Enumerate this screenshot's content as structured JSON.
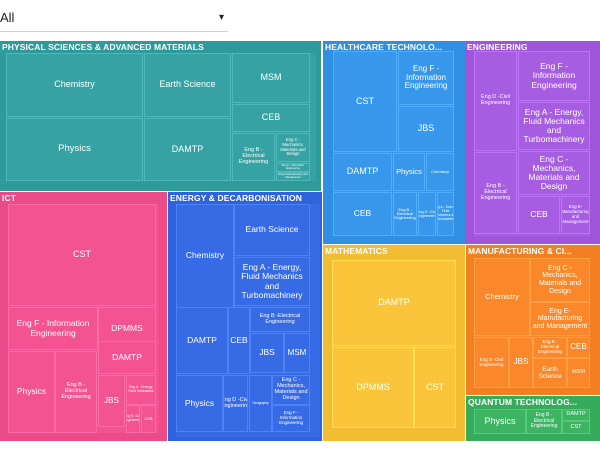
{
  "filter": {
    "value": "All",
    "caret": "▾",
    "caret_icon": "chevron-down-icon"
  },
  "chart_data": {
    "type": "treemap",
    "sections": [
      {
        "name": "PHYSICAL SCIENCES & ADVANCED MATERIALS",
        "color": "#2e9a9b",
        "items": [
          "Chemistry",
          "Earth Science",
          "MSM",
          "CEB",
          "Physics",
          "DAMTP",
          "Eng B -Electrical Engineering",
          "Eng C -Mechanics, Materials and Design",
          "Eng F - Information Engineering",
          "Eng E-Manufacturing and Management"
        ]
      },
      {
        "name": "HEALTHCARE TECHNOLO...",
        "color": "#2f8fe3",
        "items": [
          "CST",
          "Eng F - Information Engineering",
          "JBS",
          "DAMTP",
          "Physics",
          "Chemistry",
          "CEB",
          "Eng B -Electrical Engineering",
          "Eng D -Civil Engineering",
          "Eng A - Energy, Fluid Mechanics and Turbomachinery"
        ]
      },
      {
        "name": "ENGINEERING",
        "color": "#9e55da",
        "items": [
          "Eng F - Information Engineering",
          "Eng D -Civil Engineering",
          "Eng A - Energy, Fluid Mechanics and Turbomachinery",
          "Eng C -Mechanics, Materials and Design",
          "Eng B -Electrical Engineering",
          "CEB",
          "Eng E-Manufacturing and Management"
        ]
      },
      {
        "name": "ICT",
        "color": "#ec4b89",
        "items": [
          "CST",
          "Eng F - Information Engineering",
          "DPMMS",
          "DAMTP",
          "Physics",
          "Eng B -Electrical Engineering",
          "JBS",
          "Eng A - Energy, Fluid Mechanics",
          "Eng D -Civil Engineering",
          "CEB"
        ]
      },
      {
        "name": "ENERGY & DECARBONISATION",
        "color": "#2f63dd",
        "items": [
          "Chemistry",
          "Earth Science",
          "Eng A - Energy, Fluid Mechanics and Turbomachinery",
          "Eng B -Electrical Engineering",
          "DAMTP",
          "CEB",
          "JBS",
          "MSM",
          "Physics",
          "Eng D -Civil Engineering",
          "Geography",
          "Eng C -Mechanics, Materials and Design",
          "Eng F - Information Engineering"
        ]
      },
      {
        "name": "MATHEMATICS",
        "color": "#f2bd33",
        "items": [
          "DAMTP",
          "DPMMS",
          "CST"
        ]
      },
      {
        "name": "MANUFACTURING & CI...",
        "color": "#f28022",
        "items": [
          "Chemistry",
          "Eng C -Mechanics, Materials and Design",
          "Eng E-Manufacturing and Management",
          "Eng D -Civil Engineering",
          "JBS",
          "Eng B -Electrical Engineering",
          "CEB",
          "Earth Science",
          "MSM"
        ]
      },
      {
        "name": "QUANTUM TECHNOLOG...",
        "color": "#35ac5b",
        "items": [
          "Physics",
          "Eng B -Electrical Engineering",
          "DAMTP",
          "CST"
        ]
      }
    ]
  }
}
